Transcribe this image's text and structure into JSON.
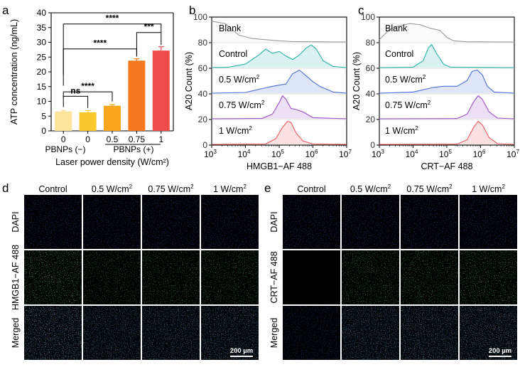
{
  "colors": {
    "bars": [
      "#fde49a",
      "#f9c82a",
      "#f8a51e",
      "#f57a1f",
      "#ee4c49"
    ],
    "blank": "#9a9a9a",
    "control": "#2ab3a6",
    "w05": "#4c6fd6",
    "w075": "#9a4fc5",
    "w1": "#ec5a5f",
    "dapi": "#2130d8",
    "green": "#33d25a",
    "cyan": "#45d7c8",
    "scale_bar": "#ffffff"
  },
  "panels": {
    "a": "a",
    "b": "b",
    "c": "c",
    "d": "d",
    "e": "e"
  },
  "chart_data": [
    {
      "type": "bar",
      "panel": "a",
      "categories": [
        "0",
        "0",
        "0.5",
        "0.75",
        "1"
      ],
      "values": [
        6.6,
        6.3,
        8.5,
        23.8,
        27.2
      ],
      "errors": [
        0.3,
        0.6,
        0.4,
        0.6,
        1.3
      ],
      "ylabel": "ATP concentration (ng/mL)",
      "xlabel": "Laser power density (W/cm²)",
      "group_labels": [
        "PBNPs (−)",
        "PBNPs (+)"
      ],
      "ylim": [
        0,
        40
      ],
      "yticks": [
        "0",
        "5",
        "10",
        "15",
        "20",
        "25",
        "30",
        "35",
        "40"
      ],
      "significance": [
        {
          "label": "ns",
          "from": 0,
          "to": 1
        },
        {
          "label": "****",
          "from": 0,
          "to": 2
        },
        {
          "label": "****",
          "from": 0,
          "to": 3
        },
        {
          "label": "***",
          "from": 3,
          "to": 4
        },
        {
          "label": "****",
          "from": 0,
          "to": 4
        }
      ]
    },
    {
      "type": "histogram",
      "panel": "b",
      "xlabel": "HMGB1−AF 488",
      "ylabel": "A20 Count (%)",
      "xscale": "log",
      "xlim": [
        3,
        7
      ],
      "ylim": [
        0,
        100
      ],
      "yticks": [
        "0",
        "20",
        "40",
        "60",
        "80",
        "100"
      ],
      "series": [
        {
          "name": "Blank",
          "x": [
            3.0,
            3.4,
            3.8,
            4.2,
            4.6,
            5.0,
            5.4,
            6.0,
            7.0
          ],
          "values": [
            0.9,
            0.8,
            0.3,
            0.15,
            0.1,
            0.05,
            0.02,
            0.01,
            0
          ]
        },
        {
          "name": "Control",
          "x": [
            3.0,
            3.5,
            4.0,
            4.4,
            4.6,
            4.8,
            5.0,
            5.2,
            5.4,
            5.6,
            5.8,
            5.95,
            6.1,
            6.3,
            6.6,
            7.0
          ],
          "values": [
            0,
            0.02,
            0.15,
            0.55,
            0.8,
            0.62,
            0.7,
            0.5,
            0.35,
            0.55,
            0.85,
            0.98,
            0.8,
            0.3,
            0.05,
            0
          ]
        },
        {
          "name": "0.5 W/cm²",
          "x": [
            3.0,
            4.0,
            4.5,
            4.8,
            5.0,
            5.2,
            5.4,
            5.6,
            5.8,
            6.0,
            6.2,
            6.6,
            7.0
          ],
          "values": [
            0,
            0.03,
            0.2,
            0.3,
            0.35,
            0.4,
            0.85,
            1.0,
            0.75,
            0.5,
            0.3,
            0.05,
            0
          ]
        },
        {
          "name": "0.75 W/cm²",
          "x": [
            3.0,
            4.5,
            4.8,
            5.0,
            5.1,
            5.2,
            5.35,
            5.5,
            5.7,
            6.0,
            7.0
          ],
          "values": [
            0,
            0.02,
            0.2,
            0.7,
            1.0,
            0.85,
            0.45,
            0.4,
            0.3,
            0.05,
            0
          ]
        },
        {
          "name": "1 W/cm²",
          "x": [
            3.0,
            4.6,
            4.9,
            5.1,
            5.25,
            5.35,
            5.5,
            5.7,
            6.0,
            7.0
          ],
          "values": [
            0,
            0.02,
            0.25,
            0.75,
            1.0,
            0.95,
            0.5,
            0.15,
            0.02,
            0
          ]
        }
      ]
    },
    {
      "type": "histogram",
      "panel": "c",
      "xlabel": "CRT−AF 488",
      "ylabel": "A20 Count (%)",
      "xscale": "log",
      "xlim": [
        3,
        7
      ],
      "ylim": [
        0,
        100
      ],
      "yticks": [
        "0",
        "20",
        "40",
        "60",
        "80",
        "100"
      ],
      "series": [
        {
          "name": "Blank",
          "x": [
            3.0,
            3.3,
            3.6,
            3.9,
            4.2,
            4.5,
            4.8,
            5.0,
            5.2,
            5.6,
            7.0
          ],
          "values": [
            0.1,
            0.55,
            0.7,
            0.8,
            0.75,
            0.6,
            0.5,
            0.2,
            0.05,
            0.01,
            0
          ]
        },
        {
          "name": "Control",
          "x": [
            3.0,
            4.0,
            4.3,
            4.45,
            4.55,
            4.7,
            4.9,
            5.1,
            7.0
          ],
          "values": [
            0,
            0.02,
            0.3,
            0.85,
            1.0,
            0.6,
            0.15,
            0.02,
            0
          ]
        },
        {
          "name": "0.5 W/cm²",
          "x": [
            3.0,
            4.0,
            4.6,
            4.9,
            5.3,
            5.6,
            5.75,
            5.9,
            6.05,
            6.2,
            6.4,
            7.0
          ],
          "values": [
            0,
            0.05,
            0.25,
            0.3,
            0.3,
            0.55,
            0.95,
            1.0,
            0.8,
            0.3,
            0.05,
            0
          ]
        },
        {
          "name": "0.75 W/cm²",
          "x": [
            3.0,
            5.3,
            5.6,
            5.8,
            5.93,
            6.05,
            6.25,
            6.5,
            7.0
          ],
          "values": [
            0,
            0.01,
            0.2,
            0.75,
            1.0,
            0.85,
            0.3,
            0.03,
            0
          ]
        },
        {
          "name": "1 W/cm²",
          "x": [
            3.0,
            5.3,
            5.6,
            5.8,
            5.93,
            6.05,
            6.25,
            6.5,
            7.0
          ],
          "values": [
            0,
            0.01,
            0.2,
            0.75,
            1.0,
            0.85,
            0.3,
            0.03,
            0
          ]
        }
      ]
    }
  ],
  "micrographs": {
    "d": {
      "columns": [
        "Control",
        "0.5 W/cm²",
        "0.75 W/cm²",
        "1 W/cm²"
      ],
      "rows": [
        "DAPI",
        "HMGB1−AF 488",
        "Merged"
      ],
      "green_intensity": [
        1.0,
        0.7,
        0.75,
        0.8
      ],
      "scale_bar": "200 µm"
    },
    "e": {
      "columns": [
        "Control",
        "0.5 W/cm²",
        "0.75 W/cm²",
        "1 W/cm²"
      ],
      "rows": [
        "DAPI",
        "CRT−AF 488",
        "Merged"
      ],
      "green_intensity": [
        0.05,
        0.8,
        0.85,
        0.9
      ],
      "scale_bar": "200 µm"
    }
  },
  "xtick_labels": [
    "10",
    "10",
    "10",
    "10",
    "10"
  ],
  "xtick_exps": [
    "3",
    "4",
    "5",
    "6",
    "7"
  ]
}
